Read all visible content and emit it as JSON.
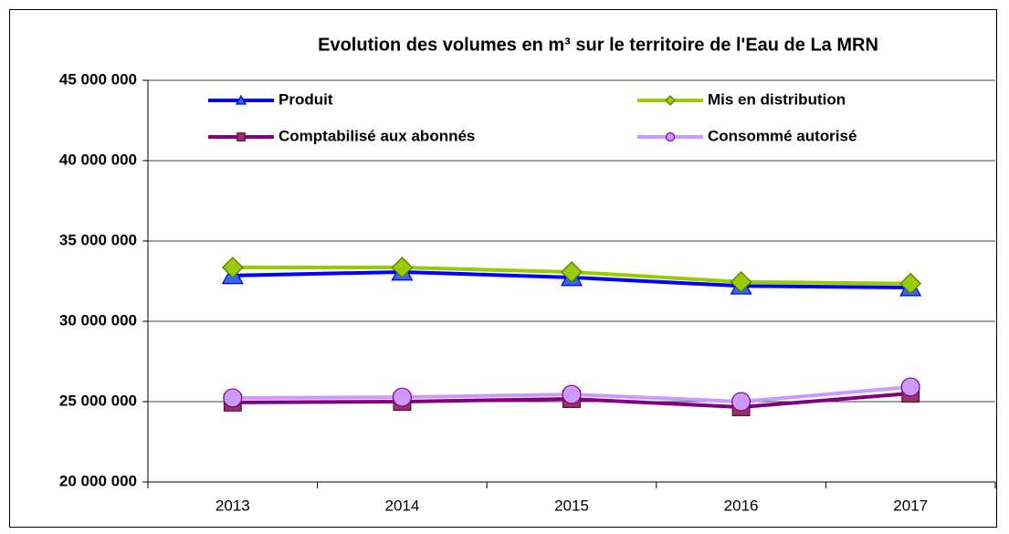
{
  "chart_data": {
    "type": "line",
    "title": "Evolution des volumes en m³ sur le territoire de l'Eau de La MRN",
    "categories": [
      "2013",
      "2014",
      "2015",
      "2016",
      "2017"
    ],
    "series": [
      {
        "name": "Produit",
        "color": "#0000ff",
        "marker": "triangle",
        "marker_color": "#3366ff",
        "values": [
          32850000,
          33070000,
          32730000,
          32200000,
          32100000
        ]
      },
      {
        "name": "Mis en distribution",
        "color": "#99cc00",
        "marker": "diamond",
        "marker_color": "#99cc00",
        "values": [
          33350000,
          33350000,
          33070000,
          32450000,
          32350000
        ]
      },
      {
        "name": "Comptabilisé aux abonnés",
        "color": "#800080",
        "marker": "square",
        "marker_color": "#993366",
        "values": [
          24950000,
          25000000,
          25170000,
          24660000,
          25510000
        ]
      },
      {
        "name": "Consommé autorisé",
        "color": "#cc99ff",
        "marker": "circle",
        "marker_color": "#cc99ff",
        "values": [
          25230000,
          25280000,
          25450000,
          25000000,
          25910000
        ]
      }
    ],
    "ylim": [
      20000000,
      45000000
    ],
    "yticks": [
      {
        "value": 20000000,
        "label": "20 000 000"
      },
      {
        "value": 25000000,
        "label": "25 000 000"
      },
      {
        "value": 30000000,
        "label": "30 000 000"
      },
      {
        "value": 35000000,
        "label": "35 000 000"
      },
      {
        "value": 40000000,
        "label": "40 000 000"
      },
      {
        "value": 45000000,
        "label": "45 000 000"
      }
    ],
    "grid": true
  }
}
